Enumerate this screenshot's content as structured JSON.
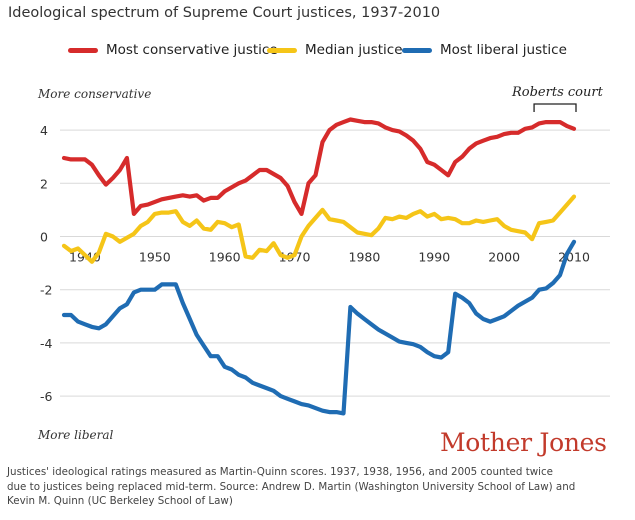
{
  "title": "Ideological spectrum of Supreme Court justices, 1937-2010",
  "legend": {
    "conservative": "Most conservative justice",
    "median": "Median justice",
    "liberal": "Most liberal justice"
  },
  "annotations": {
    "top": "More conservative",
    "bottom": "More liberal",
    "roberts": "Roberts court"
  },
  "logo": "Mother Jones",
  "footnote": {
    "line1": "Justices' ideological ratings measured as Martin-Quinn scores. 1937, 1938, 1956, and 2005 counted twice",
    "line2": "due to justices being replaced mid-term.  Source: Andrew D. Martin (Washington University School of Law) and",
    "line3": "Kevin M. Quinn (UC Berkeley School of Law)"
  },
  "colors": {
    "conservative": "#d62b2b",
    "median": "#f5c518",
    "liberal": "#1f6cb3",
    "grid": "#d9d9d9",
    "logo": "#c23a2b"
  },
  "chart_data": {
    "type": "line",
    "title": "Ideological spectrum of Supreme Court justices, 1937-2010",
    "xlabel": "",
    "ylabel": "",
    "xlim": [
      1937,
      2010
    ],
    "ylim": [
      -6.6,
      4.4
    ],
    "x_ticks": [
      1940,
      1950,
      1960,
      1970,
      1980,
      1990,
      2000,
      2010
    ],
    "y_ticks": [
      4,
      2,
      0,
      -2,
      -4,
      -6
    ],
    "grid": "horizontal",
    "legend_position": "top",
    "highlight": {
      "label": "Roberts court",
      "x_range": [
        2005,
        2010
      ]
    },
    "series": [
      {
        "name": "Most conservative justice",
        "color": "#d62b2b",
        "points": [
          [
            1937,
            2.95
          ],
          [
            1938,
            2.9
          ],
          [
            1939,
            2.9
          ],
          [
            1940,
            2.9
          ],
          [
            1941,
            2.7
          ],
          [
            1942,
            2.3
          ],
          [
            1943,
            1.95
          ],
          [
            1944,
            2.2
          ],
          [
            1945,
            2.5
          ],
          [
            1946,
            2.95
          ],
          [
            1947,
            0.85
          ],
          [
            1948,
            1.15
          ],
          [
            1949,
            1.2
          ],
          [
            1950,
            1.3
          ],
          [
            1951,
            1.4
          ],
          [
            1952,
            1.45
          ],
          [
            1953,
            1.5
          ],
          [
            1954,
            1.55
          ],
          [
            1955,
            1.5
          ],
          [
            1956,
            1.55
          ],
          [
            1957,
            1.35
          ],
          [
            1958,
            1.45
          ],
          [
            1959,
            1.45
          ],
          [
            1960,
            1.7
          ],
          [
            1961,
            1.85
          ],
          [
            1962,
            2.0
          ],
          [
            1963,
            2.1
          ],
          [
            1964,
            2.3
          ],
          [
            1965,
            2.5
          ],
          [
            1966,
            2.5
          ],
          [
            1967,
            2.35
          ],
          [
            1968,
            2.2
          ],
          [
            1969,
            1.9
          ],
          [
            1970,
            1.3
          ],
          [
            1971,
            0.85
          ],
          [
            1972,
            2.0
          ],
          [
            1973,
            2.3
          ],
          [
            1974,
            3.55
          ],
          [
            1975,
            4.0
          ],
          [
            1976,
            4.2
          ],
          [
            1977,
            4.3
          ],
          [
            1978,
            4.4
          ],
          [
            1979,
            4.35
          ],
          [
            1980,
            4.3
          ],
          [
            1981,
            4.3
          ],
          [
            1982,
            4.25
          ],
          [
            1983,
            4.1
          ],
          [
            1984,
            4.0
          ],
          [
            1985,
            3.95
          ],
          [
            1986,
            3.8
          ],
          [
            1987,
            3.6
          ],
          [
            1988,
            3.3
          ],
          [
            1989,
            2.8
          ],
          [
            1990,
            2.7
          ],
          [
            1991,
            2.5
          ],
          [
            1992,
            2.3
          ],
          [
            1993,
            2.8
          ],
          [
            1994,
            3.0
          ],
          [
            1995,
            3.3
          ],
          [
            1996,
            3.5
          ],
          [
            1997,
            3.6
          ],
          [
            1998,
            3.7
          ],
          [
            1999,
            3.75
          ],
          [
            2000,
            3.85
          ],
          [
            2001,
            3.9
          ],
          [
            2002,
            3.9
          ],
          [
            2003,
            4.05
          ],
          [
            2004,
            4.1
          ],
          [
            2005,
            4.25
          ],
          [
            2006,
            4.3
          ],
          [
            2007,
            4.3
          ],
          [
            2008,
            4.3
          ],
          [
            2009,
            4.15
          ],
          [
            2010,
            4.05
          ]
        ]
      },
      {
        "name": "Median justice",
        "color": "#f5c518",
        "points": [
          [
            1937,
            -0.35
          ],
          [
            1938,
            -0.55
          ],
          [
            1939,
            -0.45
          ],
          [
            1940,
            -0.7
          ],
          [
            1941,
            -0.95
          ],
          [
            1942,
            -0.6
          ],
          [
            1943,
            0.1
          ],
          [
            1944,
            0.0
          ],
          [
            1945,
            -0.2
          ],
          [
            1946,
            -0.05
          ],
          [
            1947,
            0.1
          ],
          [
            1948,
            0.4
          ],
          [
            1949,
            0.55
          ],
          [
            1950,
            0.85
          ],
          [
            1951,
            0.9
          ],
          [
            1952,
            0.9
          ],
          [
            1953,
            0.95
          ],
          [
            1954,
            0.55
          ],
          [
            1955,
            0.4
          ],
          [
            1956,
            0.6
          ],
          [
            1957,
            0.3
          ],
          [
            1958,
            0.25
          ],
          [
            1959,
            0.55
          ],
          [
            1960,
            0.5
          ],
          [
            1961,
            0.35
          ],
          [
            1962,
            0.45
          ],
          [
            1963,
            -0.75
          ],
          [
            1964,
            -0.8
          ],
          [
            1965,
            -0.5
          ],
          [
            1966,
            -0.55
          ],
          [
            1967,
            -0.25
          ],
          [
            1968,
            -0.7
          ],
          [
            1969,
            -0.8
          ],
          [
            1970,
            -0.7
          ],
          [
            1971,
            0.0
          ],
          [
            1972,
            0.4
          ],
          [
            1973,
            0.7
          ],
          [
            1974,
            1.0
          ],
          [
            1975,
            0.65
          ],
          [
            1976,
            0.6
          ],
          [
            1977,
            0.55
          ],
          [
            1978,
            0.35
          ],
          [
            1979,
            0.15
          ],
          [
            1980,
            0.1
          ],
          [
            1981,
            0.05
          ],
          [
            1982,
            0.3
          ],
          [
            1983,
            0.7
          ],
          [
            1984,
            0.65
          ],
          [
            1985,
            0.75
          ],
          [
            1986,
            0.7
          ],
          [
            1987,
            0.85
          ],
          [
            1988,
            0.95
          ],
          [
            1989,
            0.75
          ],
          [
            1990,
            0.85
          ],
          [
            1991,
            0.65
          ],
          [
            1992,
            0.7
          ],
          [
            1993,
            0.65
          ],
          [
            1994,
            0.5
          ],
          [
            1995,
            0.5
          ],
          [
            1996,
            0.6
          ],
          [
            1997,
            0.55
          ],
          [
            1998,
            0.6
          ],
          [
            1999,
            0.65
          ],
          [
            2000,
            0.4
          ],
          [
            2001,
            0.25
          ],
          [
            2002,
            0.2
          ],
          [
            2003,
            0.15
          ],
          [
            2004,
            -0.1
          ],
          [
            2005,
            0.5
          ],
          [
            2006,
            0.55
          ],
          [
            2007,
            0.6
          ],
          [
            2008,
            0.9
          ],
          [
            2009,
            1.2
          ],
          [
            2010,
            1.5
          ]
        ]
      },
      {
        "name": "Most liberal justice",
        "color": "#1f6cb3",
        "points": [
          [
            1937,
            -2.95
          ],
          [
            1938,
            -2.95
          ],
          [
            1939,
            -3.2
          ],
          [
            1940,
            -3.3
          ],
          [
            1941,
            -3.4
          ],
          [
            1942,
            -3.45
          ],
          [
            1943,
            -3.3
          ],
          [
            1944,
            -3.0
          ],
          [
            1945,
            -2.7
          ],
          [
            1946,
            -2.55
          ],
          [
            1947,
            -2.1
          ],
          [
            1948,
            -2.0
          ],
          [
            1949,
            -2.0
          ],
          [
            1950,
            -2.0
          ],
          [
            1951,
            -1.8
          ],
          [
            1952,
            -1.8
          ],
          [
            1953,
            -1.8
          ],
          [
            1954,
            -2.5
          ],
          [
            1955,
            -3.1
          ],
          [
            1956,
            -3.7
          ],
          [
            1957,
            -4.1
          ],
          [
            1958,
            -4.5
          ],
          [
            1959,
            -4.5
          ],
          [
            1960,
            -4.9
          ],
          [
            1961,
            -5.0
          ],
          [
            1962,
            -5.2
          ],
          [
            1963,
            -5.3
          ],
          [
            1964,
            -5.5
          ],
          [
            1965,
            -5.6
          ],
          [
            1966,
            -5.7
          ],
          [
            1967,
            -5.8
          ],
          [
            1968,
            -6.0
          ],
          [
            1969,
            -6.1
          ],
          [
            1970,
            -6.2
          ],
          [
            1971,
            -6.3
          ],
          [
            1972,
            -6.35
          ],
          [
            1973,
            -6.45
          ],
          [
            1974,
            -6.55
          ],
          [
            1975,
            -6.6
          ],
          [
            1976,
            -6.6
          ],
          [
            1977,
            -6.65
          ],
          [
            1978,
            -2.65
          ],
          [
            1979,
            -2.9
          ],
          [
            1980,
            -3.1
          ],
          [
            1981,
            -3.3
          ],
          [
            1982,
            -3.5
          ],
          [
            1983,
            -3.65
          ],
          [
            1984,
            -3.8
          ],
          [
            1985,
            -3.95
          ],
          [
            1986,
            -4.0
          ],
          [
            1987,
            -4.05
          ],
          [
            1988,
            -4.15
          ],
          [
            1989,
            -4.35
          ],
          [
            1990,
            -4.5
          ],
          [
            1991,
            -4.55
          ],
          [
            1992,
            -4.35
          ],
          [
            1993,
            -2.15
          ],
          [
            1994,
            -2.3
          ],
          [
            1995,
            -2.5
          ],
          [
            1996,
            -2.9
          ],
          [
            1997,
            -3.1
          ],
          [
            1998,
            -3.2
          ],
          [
            1999,
            -3.1
          ],
          [
            2000,
            -3.0
          ],
          [
            2001,
            -2.8
          ],
          [
            2002,
            -2.6
          ],
          [
            2003,
            -2.45
          ],
          [
            2004,
            -2.3
          ],
          [
            2005,
            -2.0
          ],
          [
            2006,
            -1.95
          ],
          [
            2007,
            -1.75
          ],
          [
            2008,
            -1.45
          ],
          [
            2009,
            -0.65
          ],
          [
            2010,
            -0.2
          ]
        ]
      }
    ]
  }
}
